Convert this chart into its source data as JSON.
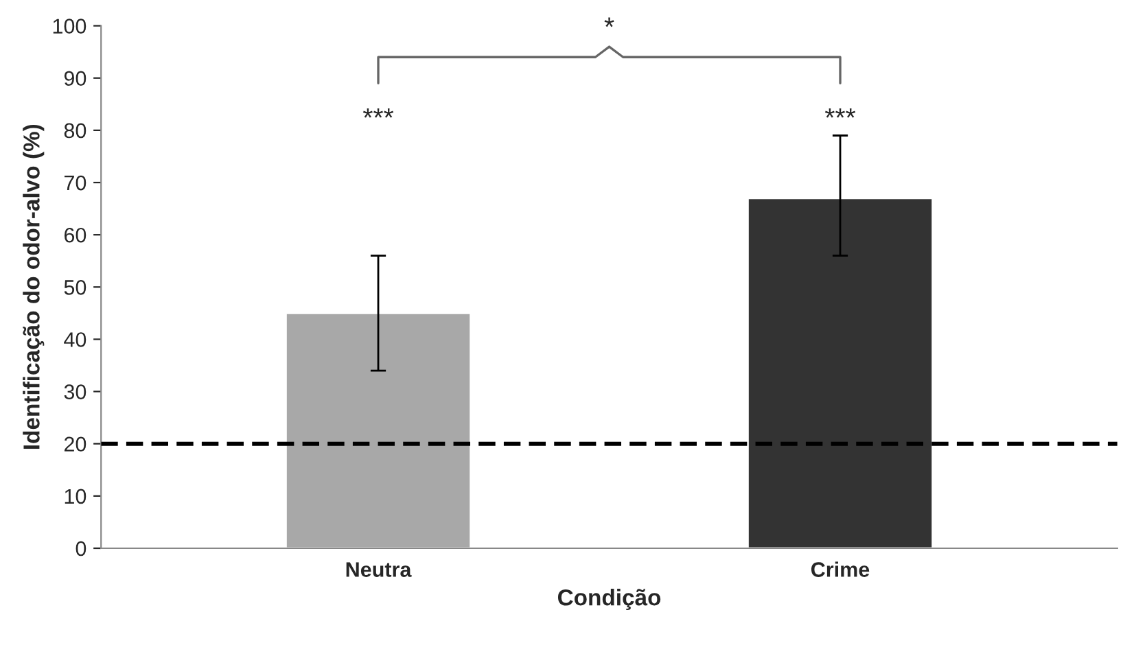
{
  "chart_data": {
    "type": "bar",
    "xlabel": "Condição",
    "ylabel": "Identificação do odor-alvo (%)",
    "categories": [
      "Neutra",
      "Crime"
    ],
    "values": [
      45,
      67
    ],
    "colors": [
      "#a8a8a8",
      "#333333"
    ],
    "errors": [
      [
        34,
        56
      ],
      [
        56,
        79
      ]
    ],
    "ylim": [
      0,
      100
    ],
    "yticks": [
      0,
      10,
      20,
      30,
      40,
      50,
      60,
      70,
      80,
      90,
      100
    ],
    "ref_lines": [
      {
        "axis": "y",
        "value": 20,
        "color": "#000000",
        "line_style": "dashed"
      }
    ],
    "annotations": [
      "***",
      "***",
      "*"
    ],
    "grid": false,
    "legend": false
  }
}
